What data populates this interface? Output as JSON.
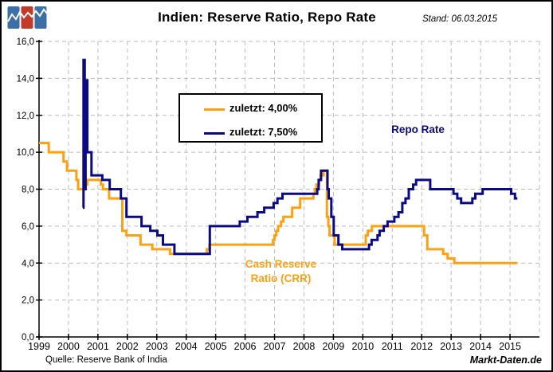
{
  "header": {
    "title": "Indien: Reserve Ratio, Repo Rate",
    "stand": "Stand: 06.03.2015"
  },
  "legend": {
    "items": [
      {
        "label": "zuletzt: 4,00%",
        "color": "#ffa010"
      },
      {
        "label": "zuletzt: 7,50%",
        "color": "#0a0a87"
      }
    ]
  },
  "annotations": {
    "repo_label": "Repo Rate",
    "crr_label_line1": "Cash Reserve",
    "crr_label_line2": "Ratio (CRR)"
  },
  "footer": {
    "source": "Quelle: Reserve Bank of India",
    "watermark": "Markt-Daten.de"
  },
  "colors": {
    "crr_line": "#ffa010",
    "repo_line": "#0a0a87",
    "grid": "#bcbcbc",
    "axis": "#000000",
    "logo_blue": "#3b6fa5",
    "logo_red": "#c23b2a"
  },
  "chart_data": {
    "type": "line",
    "step": true,
    "title": "Indien: Reserve Ratio, Repo Rate",
    "xlabel": "",
    "ylabel": "",
    "x_range": [
      1999,
      2016
    ],
    "y_range": [
      0,
      16
    ],
    "grid": true,
    "x_tick_labels": [
      "1999",
      "2000",
      "2001",
      "2002",
      "2003",
      "2004",
      "2005",
      "2006",
      "2007",
      "2008",
      "2009",
      "2010",
      "2011",
      "2012",
      "2013",
      "2014",
      "2015"
    ],
    "y_tick_labels": [
      "0,0",
      "2,0",
      "4,0",
      "6,0",
      "8,0",
      "10,0",
      "12,0",
      "14,0",
      "16,0"
    ],
    "series": [
      {
        "name": "Cash Reserve Ratio (CRR)",
        "color": "#ffa010",
        "last_value": 4.0,
        "points": [
          [
            1999.0,
            10.5
          ],
          [
            1999.33,
            10.0
          ],
          [
            1999.83,
            9.5
          ],
          [
            1999.95,
            9.0
          ],
          [
            2000.27,
            8.5
          ],
          [
            2000.33,
            8.0
          ],
          [
            2000.58,
            8.25
          ],
          [
            2000.64,
            8.5
          ],
          [
            2001.1,
            8.25
          ],
          [
            2001.17,
            8.0
          ],
          [
            2001.38,
            7.5
          ],
          [
            2001.83,
            5.75
          ],
          [
            2001.97,
            5.5
          ],
          [
            2002.45,
            5.0
          ],
          [
            2002.85,
            4.75
          ],
          [
            2003.45,
            4.5
          ],
          [
            2004.7,
            4.75
          ],
          [
            2004.79,
            5.0
          ],
          [
            2006.95,
            5.25
          ],
          [
            2007.0,
            5.5
          ],
          [
            2007.06,
            5.75
          ],
          [
            2007.12,
            6.0
          ],
          [
            2007.22,
            6.25
          ],
          [
            2007.3,
            6.5
          ],
          [
            2007.6,
            7.0
          ],
          [
            2007.87,
            7.5
          ],
          [
            2008.32,
            7.75
          ],
          [
            2008.37,
            8.0
          ],
          [
            2008.42,
            8.25
          ],
          [
            2008.51,
            8.5
          ],
          [
            2008.56,
            8.75
          ],
          [
            2008.66,
            9.0
          ],
          [
            2008.78,
            6.5
          ],
          [
            2008.83,
            6.0
          ],
          [
            2008.87,
            5.5
          ],
          [
            2009.04,
            5.0
          ],
          [
            2010.1,
            5.5
          ],
          [
            2010.17,
            5.75
          ],
          [
            2010.31,
            6.0
          ],
          [
            2012.08,
            5.5
          ],
          [
            2012.19,
            4.75
          ],
          [
            2012.73,
            4.5
          ],
          [
            2012.88,
            4.25
          ],
          [
            2013.11,
            4.0
          ],
          [
            2015.25,
            4.0
          ]
        ]
      },
      {
        "name": "Repo Rate",
        "color": "#0a0a87",
        "last_value": 7.5,
        "points": [
          [
            2000.49,
            7.0
          ],
          [
            2000.51,
            15.0
          ],
          [
            2000.55,
            8.0
          ],
          [
            2000.58,
            13.9
          ],
          [
            2000.64,
            10.0
          ],
          [
            2000.78,
            8.75
          ],
          [
            2001.15,
            8.5
          ],
          [
            2001.4,
            8.0
          ],
          [
            2001.78,
            7.5
          ],
          [
            2001.97,
            6.5
          ],
          [
            2002.48,
            6.0
          ],
          [
            2002.78,
            5.75
          ],
          [
            2003.02,
            5.5
          ],
          [
            2003.21,
            5.0
          ],
          [
            2003.6,
            4.5
          ],
          [
            2004.8,
            6.0
          ],
          [
            2005.82,
            6.25
          ],
          [
            2006.08,
            6.5
          ],
          [
            2006.42,
            6.75
          ],
          [
            2006.65,
            7.0
          ],
          [
            2006.97,
            7.25
          ],
          [
            2007.1,
            7.5
          ],
          [
            2007.27,
            7.75
          ],
          [
            2008.45,
            8.0
          ],
          [
            2008.5,
            8.5
          ],
          [
            2008.58,
            9.0
          ],
          [
            2008.8,
            8.0
          ],
          [
            2008.84,
            7.5
          ],
          [
            2008.93,
            6.5
          ],
          [
            2009.01,
            5.5
          ],
          [
            2009.17,
            5.0
          ],
          [
            2009.3,
            4.75
          ],
          [
            2010.21,
            5.0
          ],
          [
            2010.3,
            5.25
          ],
          [
            2010.5,
            5.5
          ],
          [
            2010.57,
            5.75
          ],
          [
            2010.71,
            6.0
          ],
          [
            2010.84,
            6.25
          ],
          [
            2011.07,
            6.5
          ],
          [
            2011.21,
            6.75
          ],
          [
            2011.34,
            7.25
          ],
          [
            2011.45,
            7.5
          ],
          [
            2011.56,
            8.0
          ],
          [
            2011.71,
            8.25
          ],
          [
            2011.81,
            8.5
          ],
          [
            2012.29,
            8.0
          ],
          [
            2013.08,
            7.75
          ],
          [
            2013.21,
            7.5
          ],
          [
            2013.34,
            7.25
          ],
          [
            2013.72,
            7.5
          ],
          [
            2013.82,
            7.75
          ],
          [
            2014.07,
            8.0
          ],
          [
            2015.04,
            7.75
          ],
          [
            2015.17,
            7.5
          ],
          [
            2015.25,
            7.5
          ]
        ]
      }
    ]
  }
}
